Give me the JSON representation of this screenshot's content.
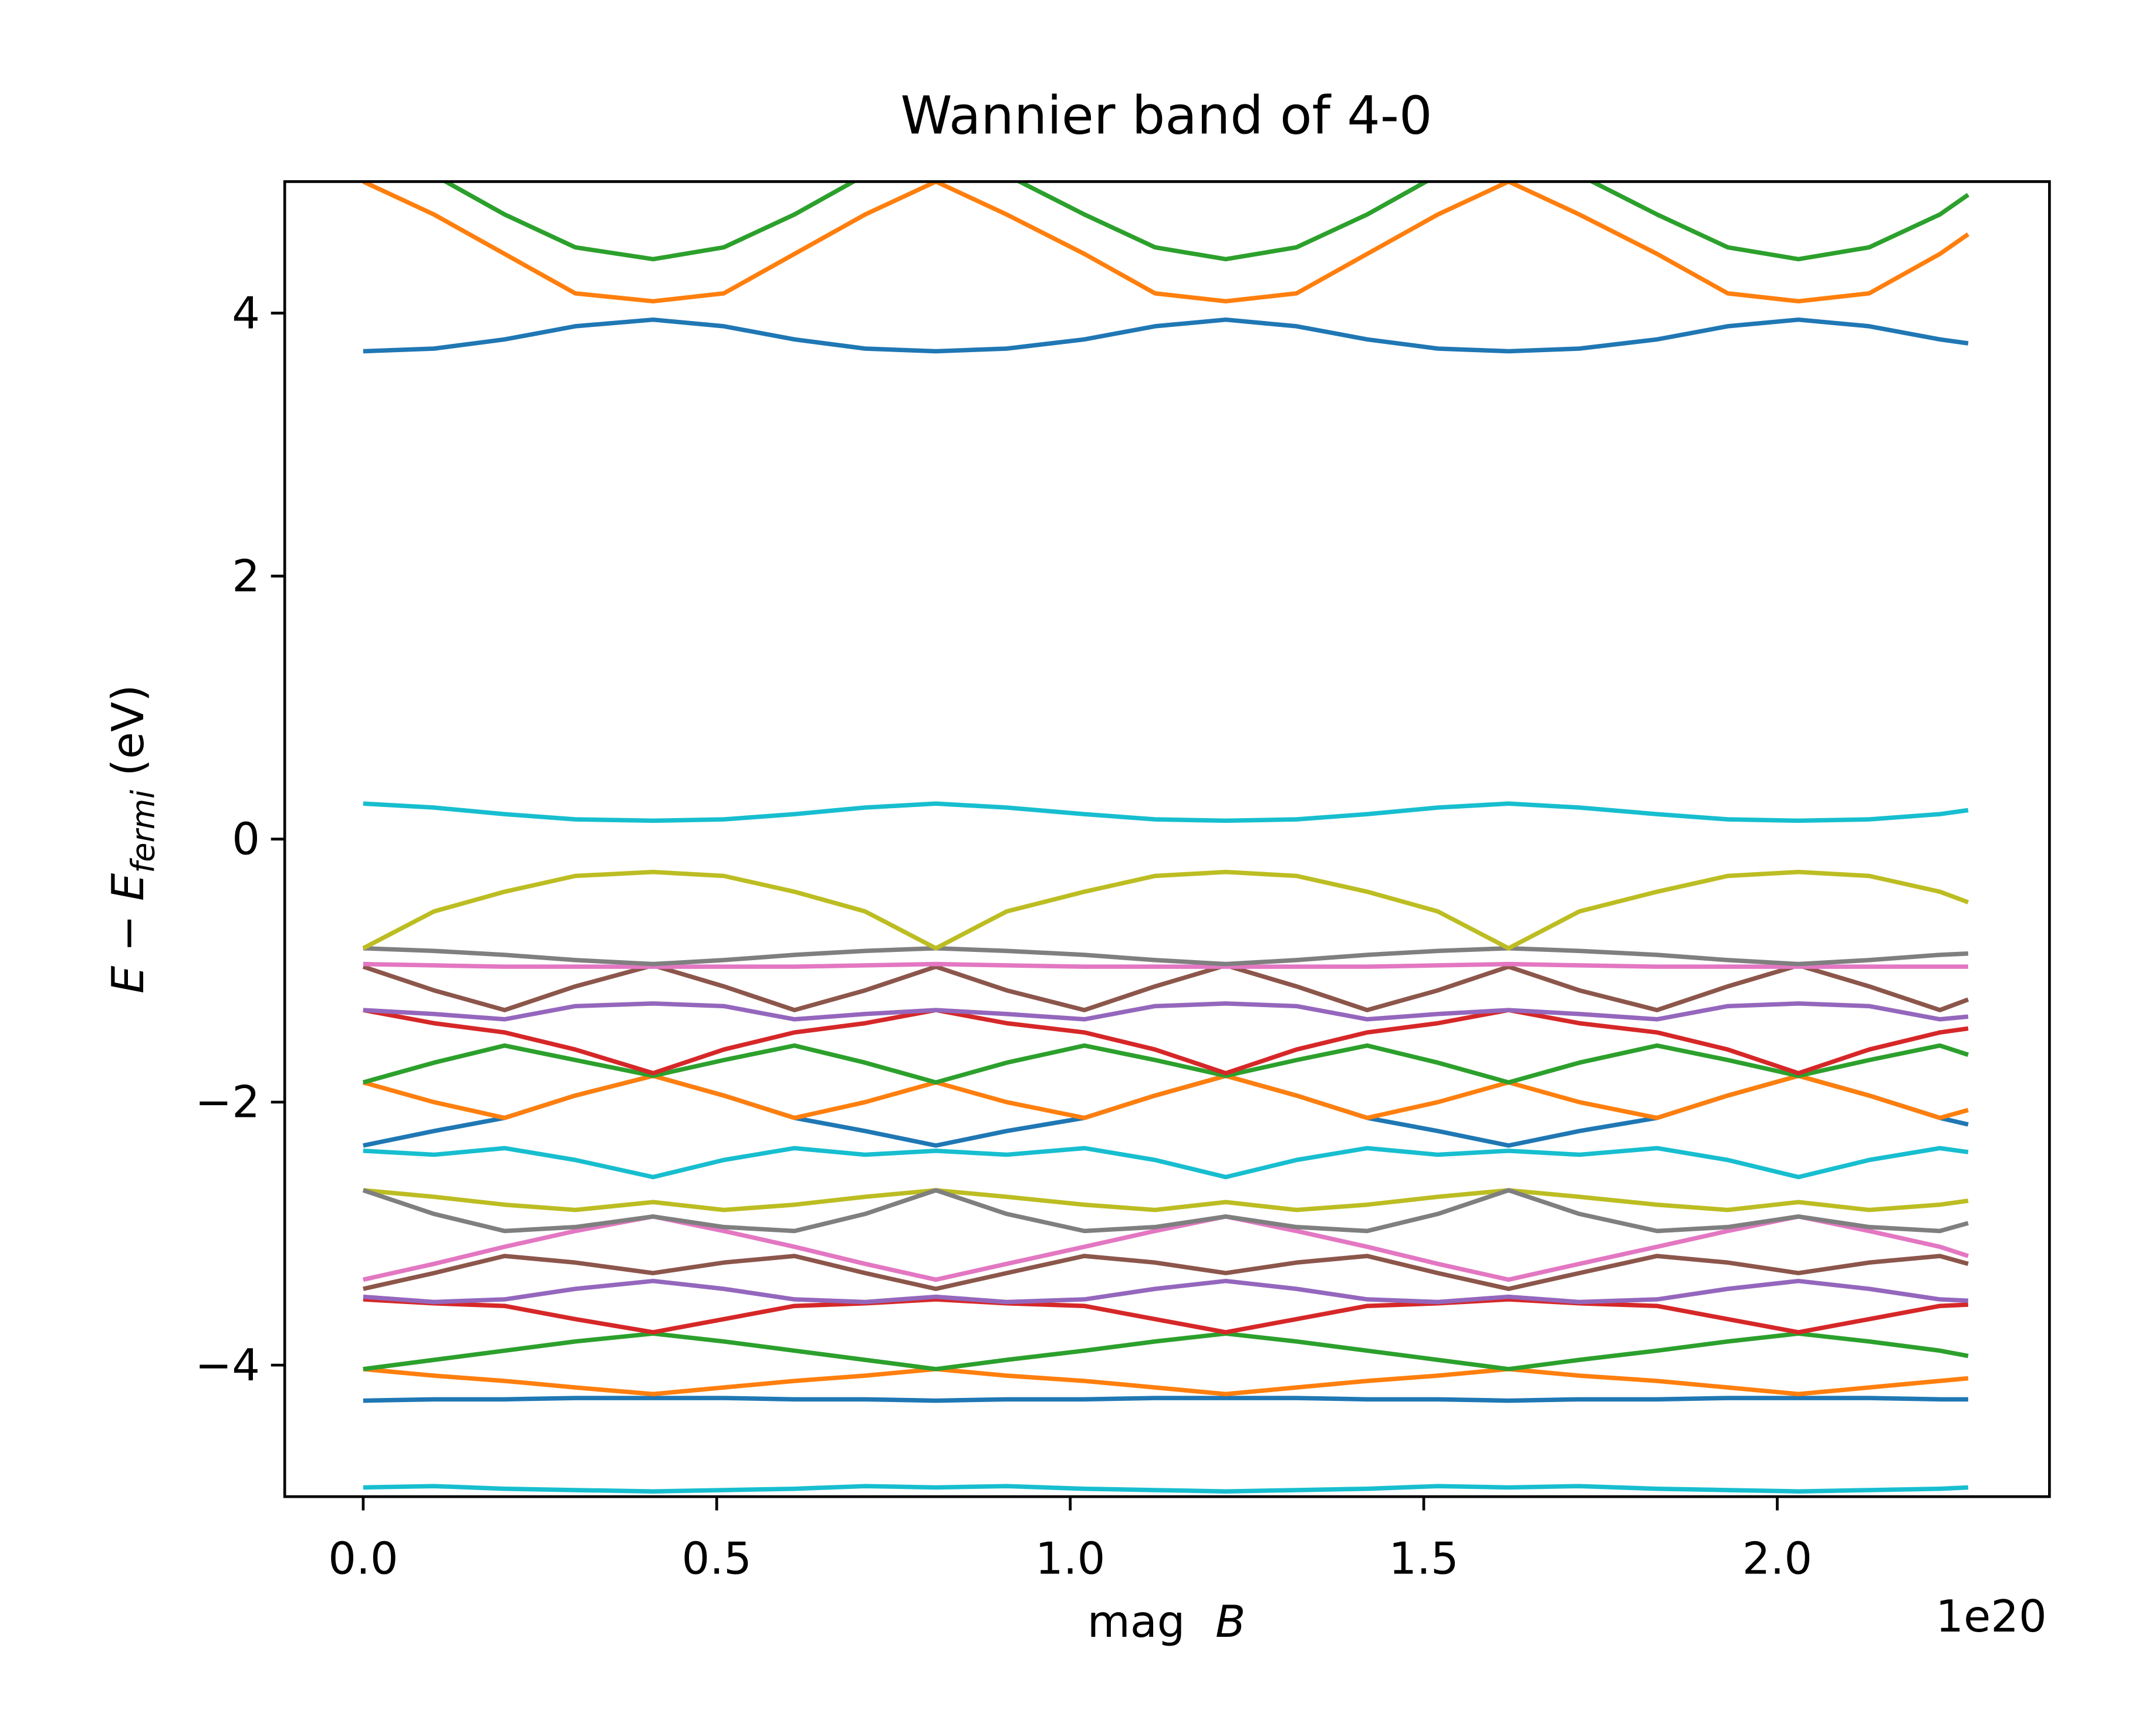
{
  "chart_data": {
    "type": "line",
    "title": "Wannier band of 4-0",
    "xlabel": {
      "text": "mag",
      "var": "B"
    },
    "x_offset_label": "1e20",
    "ylabel": {
      "main": "E − E",
      "sub": "fermi",
      "unit": "(eV)"
    },
    "xlim": [
      -0.111,
      2.385
    ],
    "ylim": [
      -5,
      5
    ],
    "xticks": [
      {
        "value": 0,
        "label": "0.0"
      },
      0.5,
      {
        "value": 1,
        "label": "1.0"
      },
      1.5,
      {
        "value": 2,
        "label": "2.0"
      }
    ],
    "yticks": [
      {
        "value": -4,
        "label": "−4"
      },
      {
        "value": -2,
        "label": "−2"
      },
      0,
      2,
      4
    ],
    "grid": false,
    "x": [
      0,
      0.1,
      0.2,
      0.3,
      0.41,
      0.51,
      0.61,
      0.71,
      0.81,
      0.91,
      1.02,
      1.12,
      1.22,
      1.32,
      1.42,
      1.52,
      1.62,
      1.72,
      1.83,
      1.93,
      2.03,
      2.13,
      2.23,
      2.27
    ],
    "series": [
      {
        "color": "#17becf",
        "values": [
          -4.93,
          -4.92,
          -4.94,
          -4.95,
          -4.96,
          -4.95,
          -4.94,
          -4.92,
          -4.93,
          -4.92,
          -4.94,
          -4.95,
          -4.96,
          -4.95,
          -4.94,
          -4.92,
          -4.93,
          -4.92,
          -4.94,
          -4.95,
          -4.96,
          -4.95,
          -4.94,
          -4.93
        ]
      },
      {
        "color": "#1f77b4",
        "values": [
          -4.27,
          -4.26,
          -4.26,
          -4.25,
          -4.25,
          -4.25,
          -4.26,
          -4.26,
          -4.27,
          -4.26,
          -4.26,
          -4.25,
          -4.25,
          -4.25,
          -4.26,
          -4.26,
          -4.27,
          -4.26,
          -4.26,
          -4.25,
          -4.25,
          -4.25,
          -4.26,
          -4.26
        ]
      },
      {
        "color": "#ff7f0e",
        "values": [
          -4.03,
          -4.08,
          -4.12,
          -4.17,
          -4.22,
          -4.17,
          -4.12,
          -4.08,
          -4.03,
          -4.08,
          -4.12,
          -4.17,
          -4.22,
          -4.17,
          -4.12,
          -4.08,
          -4.03,
          -4.08,
          -4.12,
          -4.17,
          -4.22,
          -4.17,
          -4.12,
          -4.1
        ]
      },
      {
        "color": "#2ca02c",
        "values": [
          -4.03,
          -3.96,
          -3.89,
          -3.82,
          -3.76,
          -3.82,
          -3.89,
          -3.96,
          -4.03,
          -3.96,
          -3.89,
          -3.82,
          -3.76,
          -3.82,
          -3.89,
          -3.96,
          -4.03,
          -3.96,
          -3.89,
          -3.82,
          -3.76,
          -3.82,
          -3.89,
          -3.93
        ]
      },
      {
        "color": "#d62728",
        "values": [
          -3.5,
          -3.53,
          -3.55,
          -3.65,
          -3.75,
          -3.65,
          -3.55,
          -3.53,
          -3.5,
          -3.53,
          -3.55,
          -3.65,
          -3.75,
          -3.65,
          -3.55,
          -3.53,
          -3.5,
          -3.53,
          -3.55,
          -3.65,
          -3.75,
          -3.65,
          -3.55,
          -3.54
        ]
      },
      {
        "color": "#9467bd",
        "values": [
          -3.48,
          -3.52,
          -3.5,
          -3.42,
          -3.36,
          -3.42,
          -3.5,
          -3.52,
          -3.48,
          -3.52,
          -3.5,
          -3.42,
          -3.36,
          -3.42,
          -3.5,
          -3.52,
          -3.48,
          -3.52,
          -3.5,
          -3.42,
          -3.36,
          -3.42,
          -3.5,
          -3.51
        ]
      },
      {
        "color": "#8c564b",
        "values": [
          -3.42,
          -3.3,
          -3.17,
          -3.22,
          -3.3,
          -3.22,
          -3.17,
          -3.3,
          -3.42,
          -3.3,
          -3.17,
          -3.22,
          -3.3,
          -3.22,
          -3.17,
          -3.3,
          -3.42,
          -3.3,
          -3.17,
          -3.22,
          -3.3,
          -3.22,
          -3.17,
          -3.23
        ]
      },
      {
        "color": "#e377c2",
        "values": [
          -3.35,
          -3.23,
          -3.1,
          -2.98,
          -2.87,
          -2.98,
          -3.1,
          -3.23,
          -3.35,
          -3.23,
          -3.1,
          -2.98,
          -2.87,
          -2.98,
          -3.1,
          -3.23,
          -3.35,
          -3.23,
          -3.1,
          -2.98,
          -2.87,
          -2.98,
          -3.1,
          -3.17
        ]
      },
      {
        "color": "#bcbd22",
        "values": [
          -2.67,
          -2.72,
          -2.78,
          -2.82,
          -2.76,
          -2.82,
          -2.78,
          -2.72,
          -2.67,
          -2.72,
          -2.78,
          -2.82,
          -2.76,
          -2.82,
          -2.78,
          -2.72,
          -2.67,
          -2.72,
          -2.78,
          -2.82,
          -2.76,
          -2.82,
          -2.78,
          -2.75
        ]
      },
      {
        "color": "#7f7f7f",
        "values": [
          -2.67,
          -2.85,
          -2.98,
          -2.95,
          -2.87,
          -2.95,
          -2.98,
          -2.85,
          -2.67,
          -2.85,
          -2.98,
          -2.95,
          -2.87,
          -2.95,
          -2.98,
          -2.85,
          -2.67,
          -2.85,
          -2.98,
          -2.95,
          -2.87,
          -2.95,
          -2.98,
          -2.92
        ]
      },
      {
        "color": "#17becf",
        "values": [
          -2.37,
          -2.4,
          -2.35,
          -2.44,
          -2.57,
          -2.44,
          -2.35,
          -2.4,
          -2.37,
          -2.4,
          -2.35,
          -2.44,
          -2.57,
          -2.44,
          -2.35,
          -2.4,
          -2.37,
          -2.4,
          -2.35,
          -2.44,
          -2.57,
          -2.44,
          -2.35,
          -2.38
        ]
      },
      {
        "color": "#1f77b4",
        "values": [
          -2.33,
          -2.22,
          -2.12,
          -1.95,
          -1.8,
          -1.95,
          -2.12,
          -2.22,
          -2.33,
          -2.22,
          -2.12,
          -1.95,
          -1.8,
          -1.95,
          -2.12,
          -2.22,
          -2.33,
          -2.22,
          -2.12,
          -1.95,
          -1.8,
          -1.95,
          -2.12,
          -2.17
        ]
      },
      {
        "color": "#ff7f0e",
        "values": [
          -1.85,
          -2.0,
          -2.12,
          -1.95,
          -1.8,
          -1.95,
          -2.12,
          -2.0,
          -1.85,
          -2.0,
          -2.12,
          -1.95,
          -1.8,
          -1.95,
          -2.12,
          -2.0,
          -1.85,
          -2.0,
          -2.12,
          -1.95,
          -1.8,
          -1.95,
          -2.12,
          -2.06
        ]
      },
      {
        "color": "#2ca02c",
        "values": [
          -1.85,
          -1.7,
          -1.57,
          -1.68,
          -1.8,
          -1.68,
          -1.57,
          -1.7,
          -1.85,
          -1.7,
          -1.57,
          -1.68,
          -1.8,
          -1.68,
          -1.57,
          -1.7,
          -1.85,
          -1.7,
          -1.57,
          -1.68,
          -1.8,
          -1.68,
          -1.57,
          -1.64
        ]
      },
      {
        "color": "#d62728",
        "values": [
          -1.3,
          -1.4,
          -1.47,
          -1.6,
          -1.78,
          -1.6,
          -1.47,
          -1.4,
          -1.3,
          -1.4,
          -1.47,
          -1.6,
          -1.78,
          -1.6,
          -1.47,
          -1.4,
          -1.3,
          -1.4,
          -1.47,
          -1.6,
          -1.78,
          -1.6,
          -1.47,
          -1.44
        ]
      },
      {
        "color": "#9467bd",
        "values": [
          -1.3,
          -1.33,
          -1.37,
          -1.27,
          -1.25,
          -1.27,
          -1.37,
          -1.33,
          -1.3,
          -1.33,
          -1.37,
          -1.27,
          -1.25,
          -1.27,
          -1.37,
          -1.33,
          -1.3,
          -1.33,
          -1.37,
          -1.27,
          -1.25,
          -1.27,
          -1.37,
          -1.35
        ]
      },
      {
        "color": "#8c564b",
        "values": [
          -0.97,
          -1.15,
          -1.3,
          -1.12,
          -0.96,
          -1.12,
          -1.3,
          -1.15,
          -0.97,
          -1.15,
          -1.3,
          -1.12,
          -0.96,
          -1.12,
          -1.3,
          -1.15,
          -0.97,
          -1.15,
          -1.3,
          -1.12,
          -0.96,
          -1.12,
          -1.3,
          -1.22
        ]
      },
      {
        "color": "#e377c2",
        "values": [
          -0.95,
          -0.96,
          -0.97,
          -0.97,
          -0.97,
          -0.97,
          -0.97,
          -0.96,
          -0.95,
          -0.96,
          -0.97,
          -0.97,
          -0.97,
          -0.97,
          -0.97,
          -0.96,
          -0.95,
          -0.96,
          -0.97,
          -0.97,
          -0.97,
          -0.97,
          -0.97,
          -0.97
        ]
      },
      {
        "color": "#7f7f7f",
        "values": [
          -0.83,
          -0.85,
          -0.88,
          -0.92,
          -0.95,
          -0.92,
          -0.88,
          -0.85,
          -0.83,
          -0.85,
          -0.88,
          -0.92,
          -0.95,
          -0.92,
          -0.88,
          -0.85,
          -0.83,
          -0.85,
          -0.88,
          -0.92,
          -0.95,
          -0.92,
          -0.88,
          -0.87
        ]
      },
      {
        "color": "#bcbd22",
        "values": [
          -0.83,
          -0.55,
          -0.4,
          -0.28,
          -0.25,
          -0.28,
          -0.4,
          -0.55,
          -0.83,
          -0.55,
          -0.4,
          -0.28,
          -0.25,
          -0.28,
          -0.4,
          -0.55,
          -0.83,
          -0.55,
          -0.4,
          -0.28,
          -0.25,
          -0.28,
          -0.4,
          -0.48
        ]
      },
      {
        "color": "#17becf",
        "values": [
          0.27,
          0.24,
          0.19,
          0.15,
          0.14,
          0.15,
          0.19,
          0.24,
          0.27,
          0.24,
          0.19,
          0.15,
          0.14,
          0.15,
          0.19,
          0.24,
          0.27,
          0.24,
          0.19,
          0.15,
          0.14,
          0.15,
          0.19,
          0.22
        ]
      },
      {
        "color": "#1f77b4",
        "values": [
          3.71,
          3.73,
          3.8,
          3.9,
          3.95,
          3.9,
          3.8,
          3.73,
          3.71,
          3.73,
          3.8,
          3.9,
          3.95,
          3.9,
          3.8,
          3.73,
          3.71,
          3.73,
          3.8,
          3.9,
          3.95,
          3.9,
          3.8,
          3.77
        ]
      },
      {
        "color": "#ff7f0e",
        "values": [
          5.0,
          4.75,
          4.45,
          4.15,
          4.09,
          4.15,
          4.45,
          4.75,
          5.0,
          4.75,
          4.45,
          4.15,
          4.09,
          4.15,
          4.45,
          4.75,
          5.0,
          4.75,
          4.45,
          4.15,
          4.09,
          4.15,
          4.45,
          4.6
        ]
      },
      {
        "color": "#2ca02c",
        "values": [
          5.25,
          5.05,
          4.75,
          4.5,
          4.41,
          4.5,
          4.75,
          5.05,
          5.25,
          5.05,
          4.75,
          4.5,
          4.41,
          4.5,
          4.75,
          5.05,
          5.25,
          5.05,
          4.75,
          4.5,
          4.41,
          4.5,
          4.75,
          4.9
        ]
      }
    ]
  }
}
